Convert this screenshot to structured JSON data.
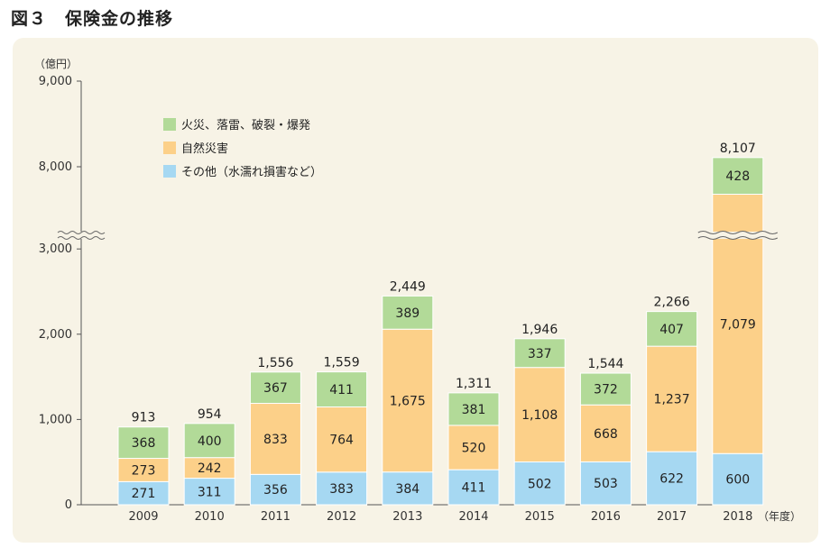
{
  "figure_title": "図３　保険金の推移",
  "chart_data": {
    "type": "bar",
    "stacked": true,
    "ylabel": "（億円）",
    "xlabel": "（年度）",
    "axis_break": "between 3,000 and 8,000",
    "yticks": [
      "0",
      "1,000",
      "2,000",
      "3,000",
      "8,000",
      "9,000"
    ],
    "categories": [
      "2009",
      "2010",
      "2011",
      "2012",
      "2013",
      "2014",
      "2015",
      "2016",
      "2017",
      "2018"
    ],
    "series": [
      {
        "name": "その他（水濡れ損害など）",
        "color": "#a6d8f2",
        "values": [
          271,
          311,
          356,
          383,
          384,
          411,
          502,
          503,
          622,
          600
        ],
        "labels": [
          "271",
          "311",
          "356",
          "383",
          "384",
          "411",
          "502",
          "503",
          "622",
          "600"
        ]
      },
      {
        "name": "自然災害",
        "color": "#fcd089",
        "values": [
          273,
          242,
          833,
          764,
          1675,
          520,
          1108,
          668,
          1237,
          7079
        ],
        "labels": [
          "273",
          "242",
          "833",
          "764",
          "1,675",
          "520",
          "1,108",
          "668",
          "1,237",
          "7,079"
        ]
      },
      {
        "name": "火災、落雷、破裂・爆発",
        "color": "#b2da98",
        "values": [
          368,
          400,
          367,
          411,
          389,
          381,
          337,
          372,
          407,
          428
        ],
        "labels": [
          "368",
          "400",
          "367",
          "411",
          "389",
          "381",
          "337",
          "372",
          "407",
          "428"
        ]
      }
    ],
    "totals": [
      913,
      954,
      1556,
      1559,
      2449,
      1311,
      1946,
      1544,
      2266,
      8107
    ],
    "total_labels": [
      "913",
      "954",
      "1,556",
      "1,559",
      "2,449",
      "1,311",
      "1,946",
      "1,544",
      "2,266",
      "8,107"
    ],
    "legend": "top-left",
    "grid": false
  }
}
